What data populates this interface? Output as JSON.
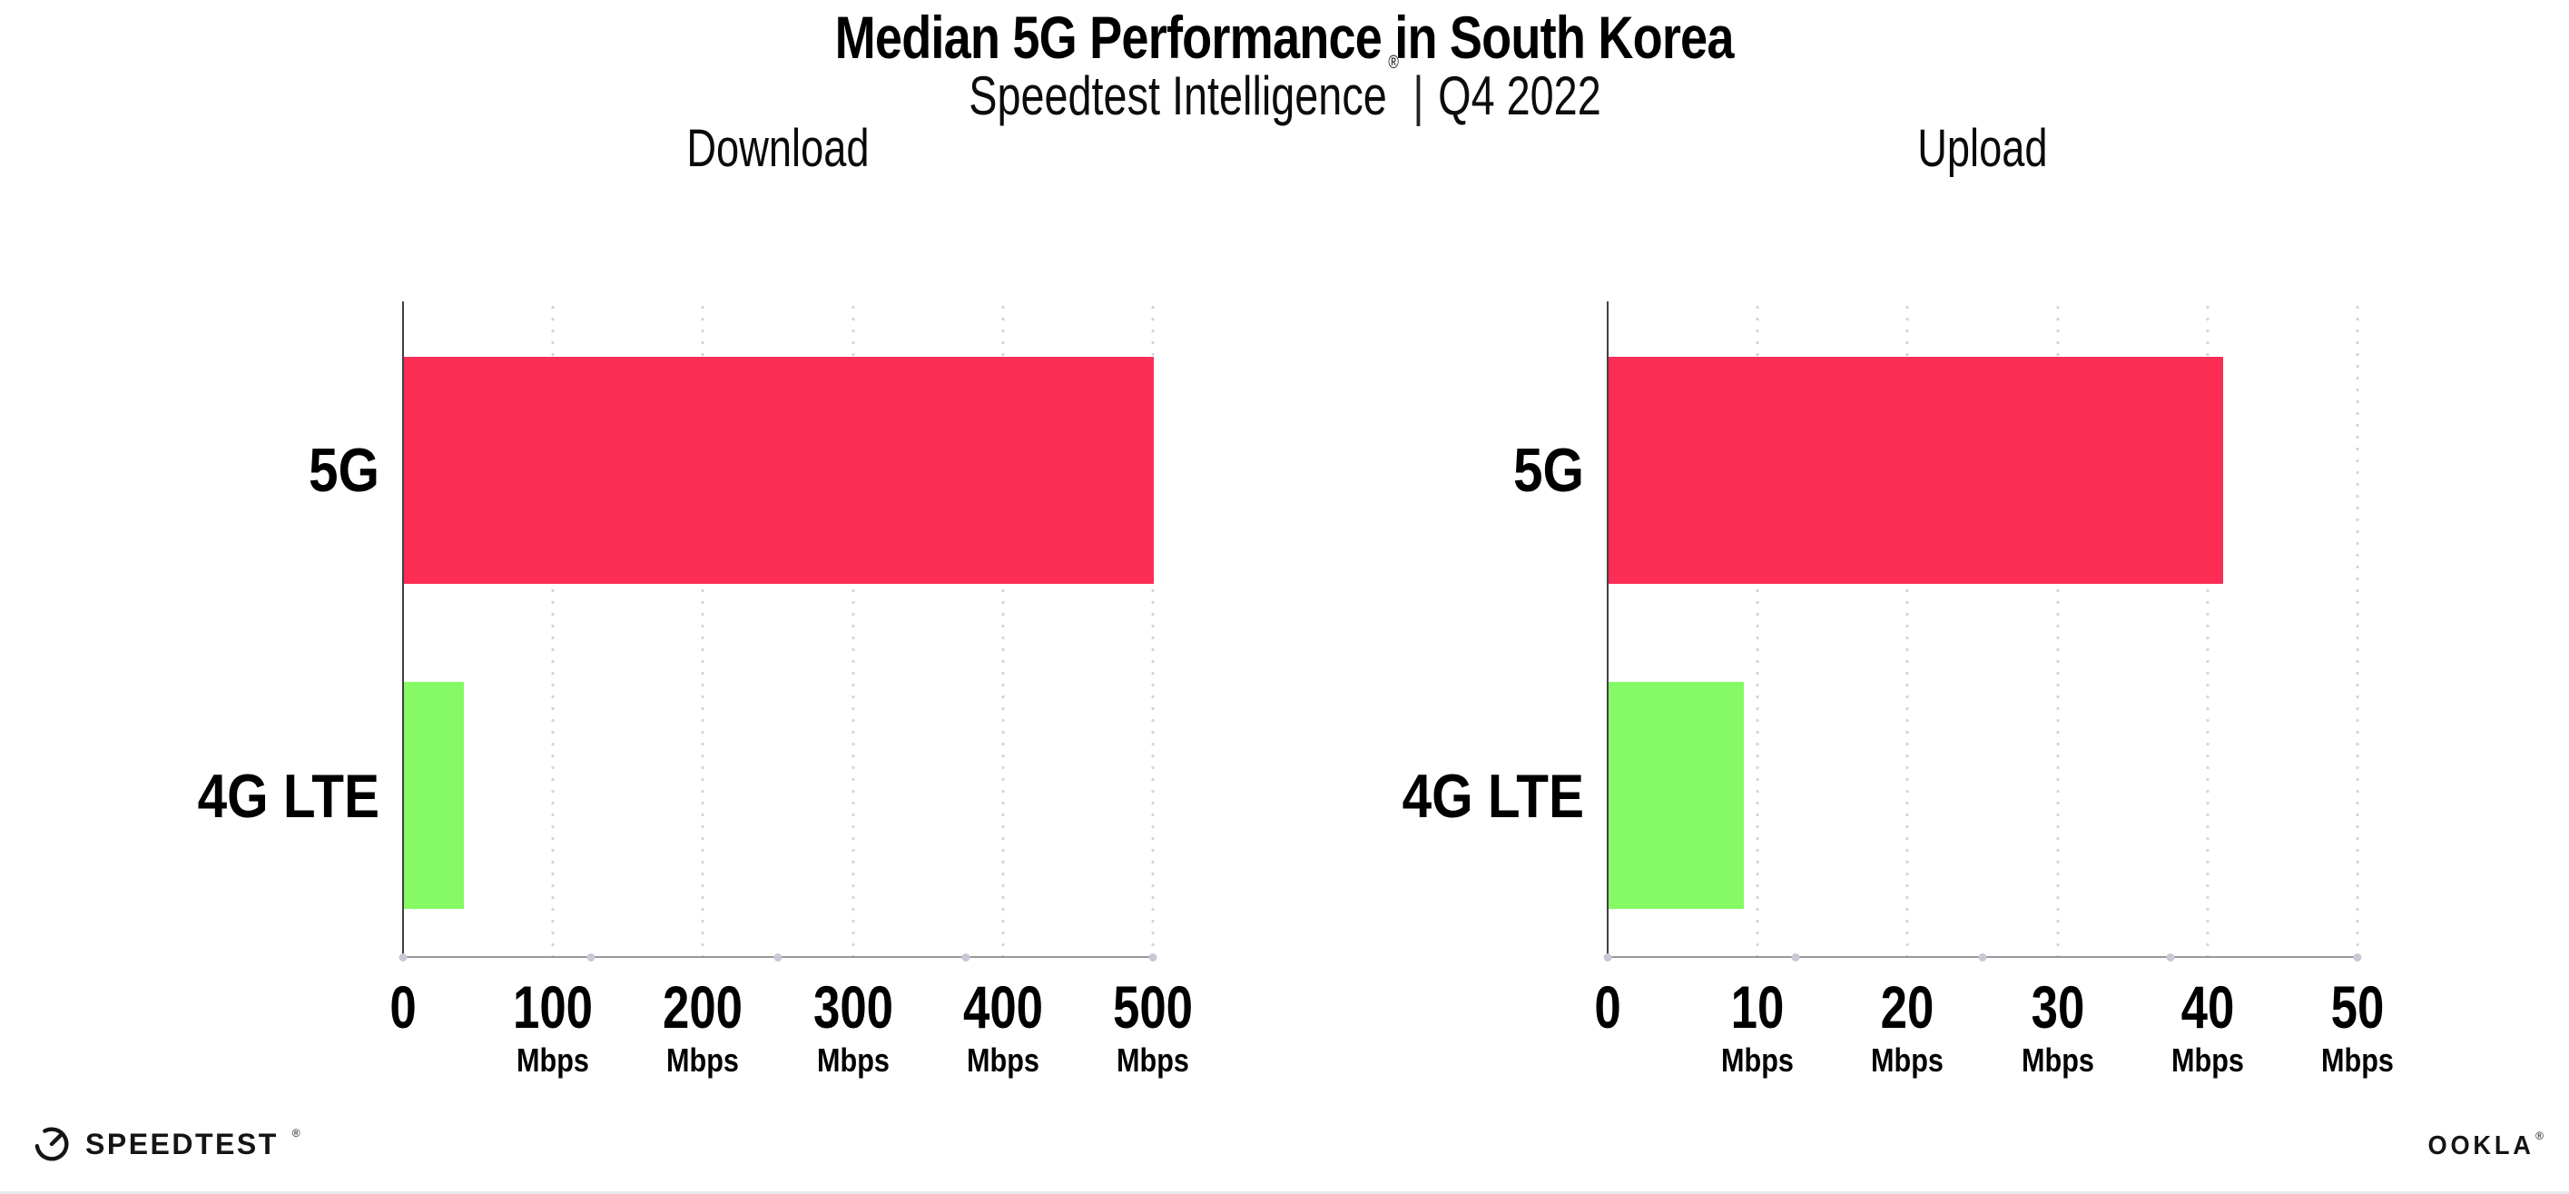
{
  "header": {
    "title": "Median 5G Performance in South Korea",
    "subtitle_brand": "Speedtest Intelligence",
    "subtitle_reg": "®",
    "subtitle_sep": "|",
    "subtitle_period": "Q4 2022"
  },
  "chart_data": {
    "type": "bar",
    "orientation": "horizontal",
    "grid": "vertical-dotted",
    "legend": "none",
    "unit": "Mbps",
    "categories": [
      "5G",
      "4G LTE"
    ],
    "charts": [
      {
        "title": "Download",
        "xlim": [
          0,
          500
        ],
        "ticks": [
          {
            "value": 0,
            "label": "0",
            "unit": ""
          },
          {
            "value": 100,
            "label": "100",
            "unit": "Mbps"
          },
          {
            "value": 200,
            "label": "200",
            "unit": "Mbps"
          },
          {
            "value": 300,
            "label": "300",
            "unit": "Mbps"
          },
          {
            "value": 400,
            "label": "400",
            "unit": "Mbps"
          },
          {
            "value": 500,
            "label": "500",
            "unit": "Mbps"
          }
        ],
        "series": [
          {
            "name": "5G",
            "value": 500,
            "color": "#FC2D55"
          },
          {
            "name": "4G LTE",
            "value": 40,
            "color": "#85FA64"
          }
        ]
      },
      {
        "title": "Upload",
        "xlim": [
          0,
          50
        ],
        "ticks": [
          {
            "value": 0,
            "label": "0",
            "unit": ""
          },
          {
            "value": 10,
            "label": "10",
            "unit": "Mbps"
          },
          {
            "value": 20,
            "label": "20",
            "unit": "Mbps"
          },
          {
            "value": 30,
            "label": "30",
            "unit": "Mbps"
          },
          {
            "value": 40,
            "label": "40",
            "unit": "Mbps"
          },
          {
            "value": 50,
            "label": "50",
            "unit": "Mbps"
          }
        ],
        "series": [
          {
            "name": "5G",
            "value": 41,
            "color": "#FC2D55"
          },
          {
            "name": "4G LTE",
            "value": 9,
            "color": "#85FA64"
          }
        ]
      }
    ]
  },
  "colors": {
    "bar_5g": "#FC2D55",
    "bar_4g_lte": "#85FA64",
    "axis_line": "#97979d",
    "axis_spine": "#3f3f44",
    "grid_dot": "#d2d4e0"
  },
  "footer": {
    "speedtest_text": "SPEEDTEST",
    "speedtest_mark": "®",
    "ookla_text": "OOKLA",
    "ookla_mark": "®"
  }
}
